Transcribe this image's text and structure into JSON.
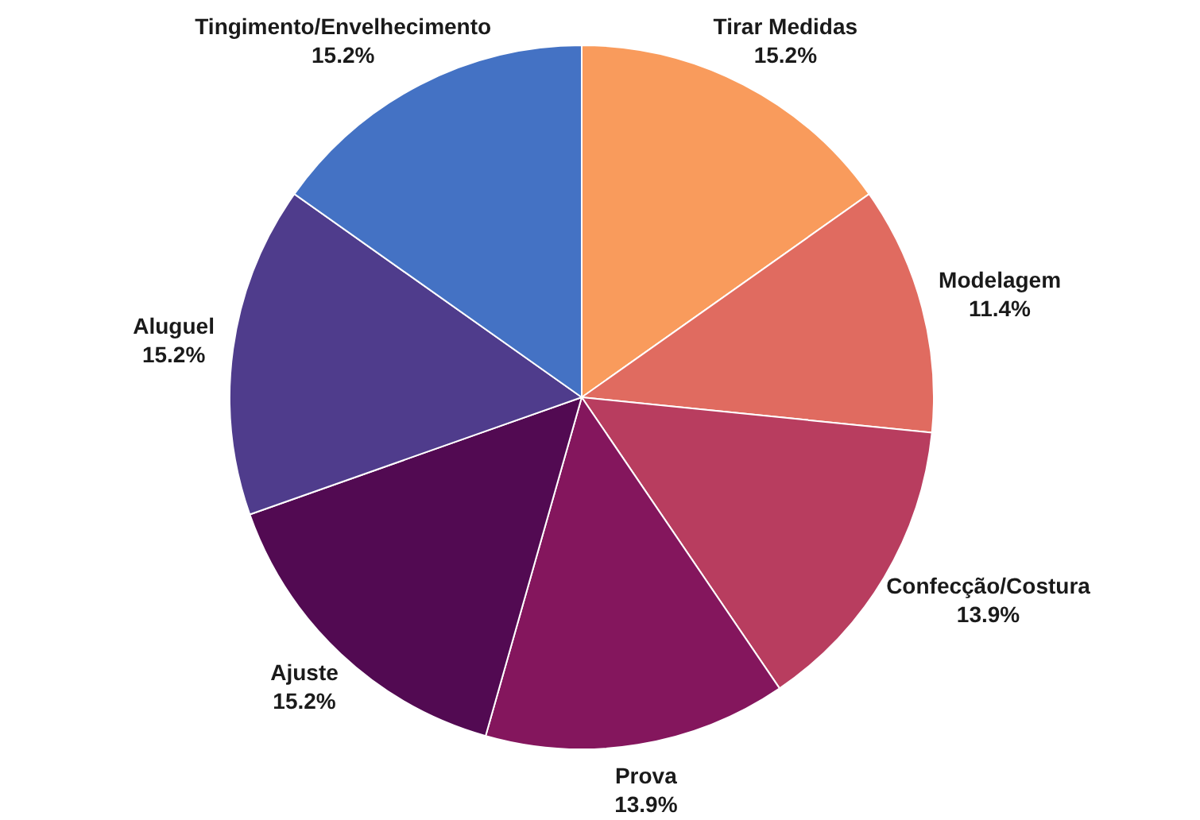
{
  "chart_data": {
    "type": "pie",
    "categories": [
      "Tirar Medidas",
      "Modelagem",
      "Confecção/Costura",
      "Prova",
      "Ajuste",
      "Aluguel",
      "Tingimento/Envelhecimento"
    ],
    "values": [
      15.2,
      11.4,
      13.9,
      13.9,
      15.2,
      15.2,
      15.2
    ],
    "colors": [
      "#f99b5c",
      "#e06b60",
      "#b83d5f",
      "#84165d",
      "#520a52",
      "#4f3c8c",
      "#4472c4"
    ],
    "value_labels": [
      "15.2%",
      "11.4%",
      "13.9%",
      "13.9%",
      "15.2%",
      "15.2%",
      "15.2%"
    ],
    "legend": false
  }
}
